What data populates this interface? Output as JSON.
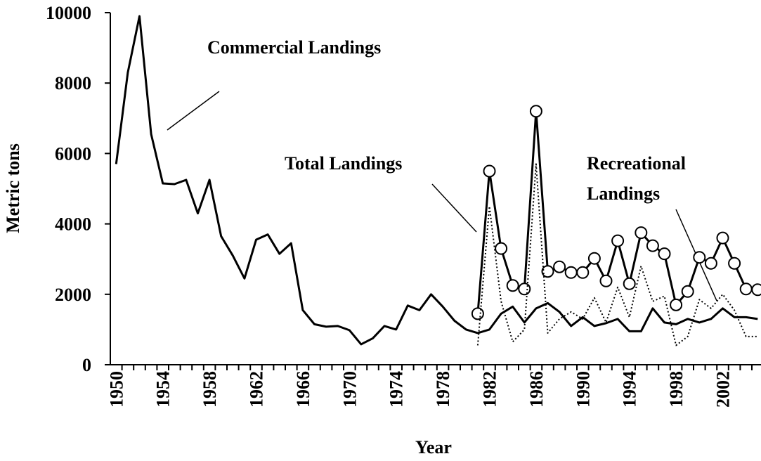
{
  "chart_data": {
    "type": "line",
    "x_label": "Year",
    "y_label": "Metric tons",
    "categories": [
      "1950",
      null,
      null,
      null,
      "1954",
      null,
      null,
      null,
      "1958",
      null,
      null,
      null,
      "1962",
      null,
      null,
      null,
      "1966",
      null,
      null,
      null,
      "1970",
      null,
      null,
      null,
      "1974",
      null,
      null,
      null,
      "1978",
      null,
      null,
      null,
      "1982",
      null,
      null,
      null,
      "1986",
      null,
      null,
      null,
      "1990",
      null,
      null,
      null,
      "1994",
      null,
      null,
      null,
      "1998",
      null,
      null,
      null,
      "2002",
      null,
      null,
      null
    ],
    "series": [
      {
        "name": "Commercial Landings",
        "color": "#000000",
        "dash": "solid",
        "marker": "none",
        "values": [
          5700,
          8300,
          9900,
          6550,
          5150,
          5130,
          5250,
          4300,
          5250,
          3650,
          3100,
          2450,
          3550,
          3700,
          3150,
          3450,
          1550,
          1150,
          1080,
          1100,
          980,
          580,
          750,
          1100,
          1000,
          1680,
          1550,
          2000,
          1650,
          1250,
          1000,
          900,
          1000,
          1450,
          1650,
          1200,
          1600,
          1750,
          1500,
          1100,
          1350,
          1100,
          1180,
          1300,
          950,
          950,
          1600,
          1200,
          1150,
          1300,
          1200,
          1300,
          1600,
          1350,
          1350,
          1300
        ]
      },
      {
        "name": "Total Landings",
        "color": "#000000",
        "dash": "solid",
        "marker": "circle",
        "values": [
          null,
          null,
          null,
          null,
          null,
          null,
          null,
          null,
          null,
          null,
          null,
          null,
          null,
          null,
          null,
          null,
          null,
          null,
          null,
          null,
          null,
          null,
          null,
          null,
          null,
          null,
          null,
          null,
          null,
          null,
          null,
          1450,
          5500,
          3300,
          2250,
          2150,
          7200,
          2650,
          2780,
          2620,
          2620,
          3020,
          2380,
          3520,
          2300,
          3750,
          3380,
          3150,
          1700,
          2080,
          3050,
          2880,
          3600,
          2880,
          2150,
          2130
        ]
      },
      {
        "name": "Recreational Landings",
        "color": "#000000",
        "dash": "dotted",
        "marker": "none",
        "values": [
          null,
          null,
          null,
          null,
          null,
          null,
          null,
          null,
          null,
          null,
          null,
          null,
          null,
          null,
          null,
          null,
          null,
          null,
          null,
          null,
          null,
          null,
          null,
          null,
          null,
          null,
          null,
          null,
          null,
          null,
          null,
          550,
          4500,
          1800,
          650,
          1000,
          5700,
          900,
          1300,
          1500,
          1300,
          1900,
          1200,
          2200,
          1350,
          2800,
          1800,
          1950,
          550,
          800,
          1850,
          1600,
          2000,
          1550,
          800,
          800
        ]
      }
    ],
    "annotations": [
      {
        "lines": [
          "Commercial Landings"
        ]
      },
      {
        "lines": [
          "Total Landings"
        ]
      },
      {
        "lines": [
          "Recreational",
          "Landings"
        ]
      }
    ],
    "ylim": [
      0,
      10000
    ],
    "yticks": [
      0,
      2000,
      4000,
      6000,
      8000,
      10000
    ],
    "grid": false
  }
}
